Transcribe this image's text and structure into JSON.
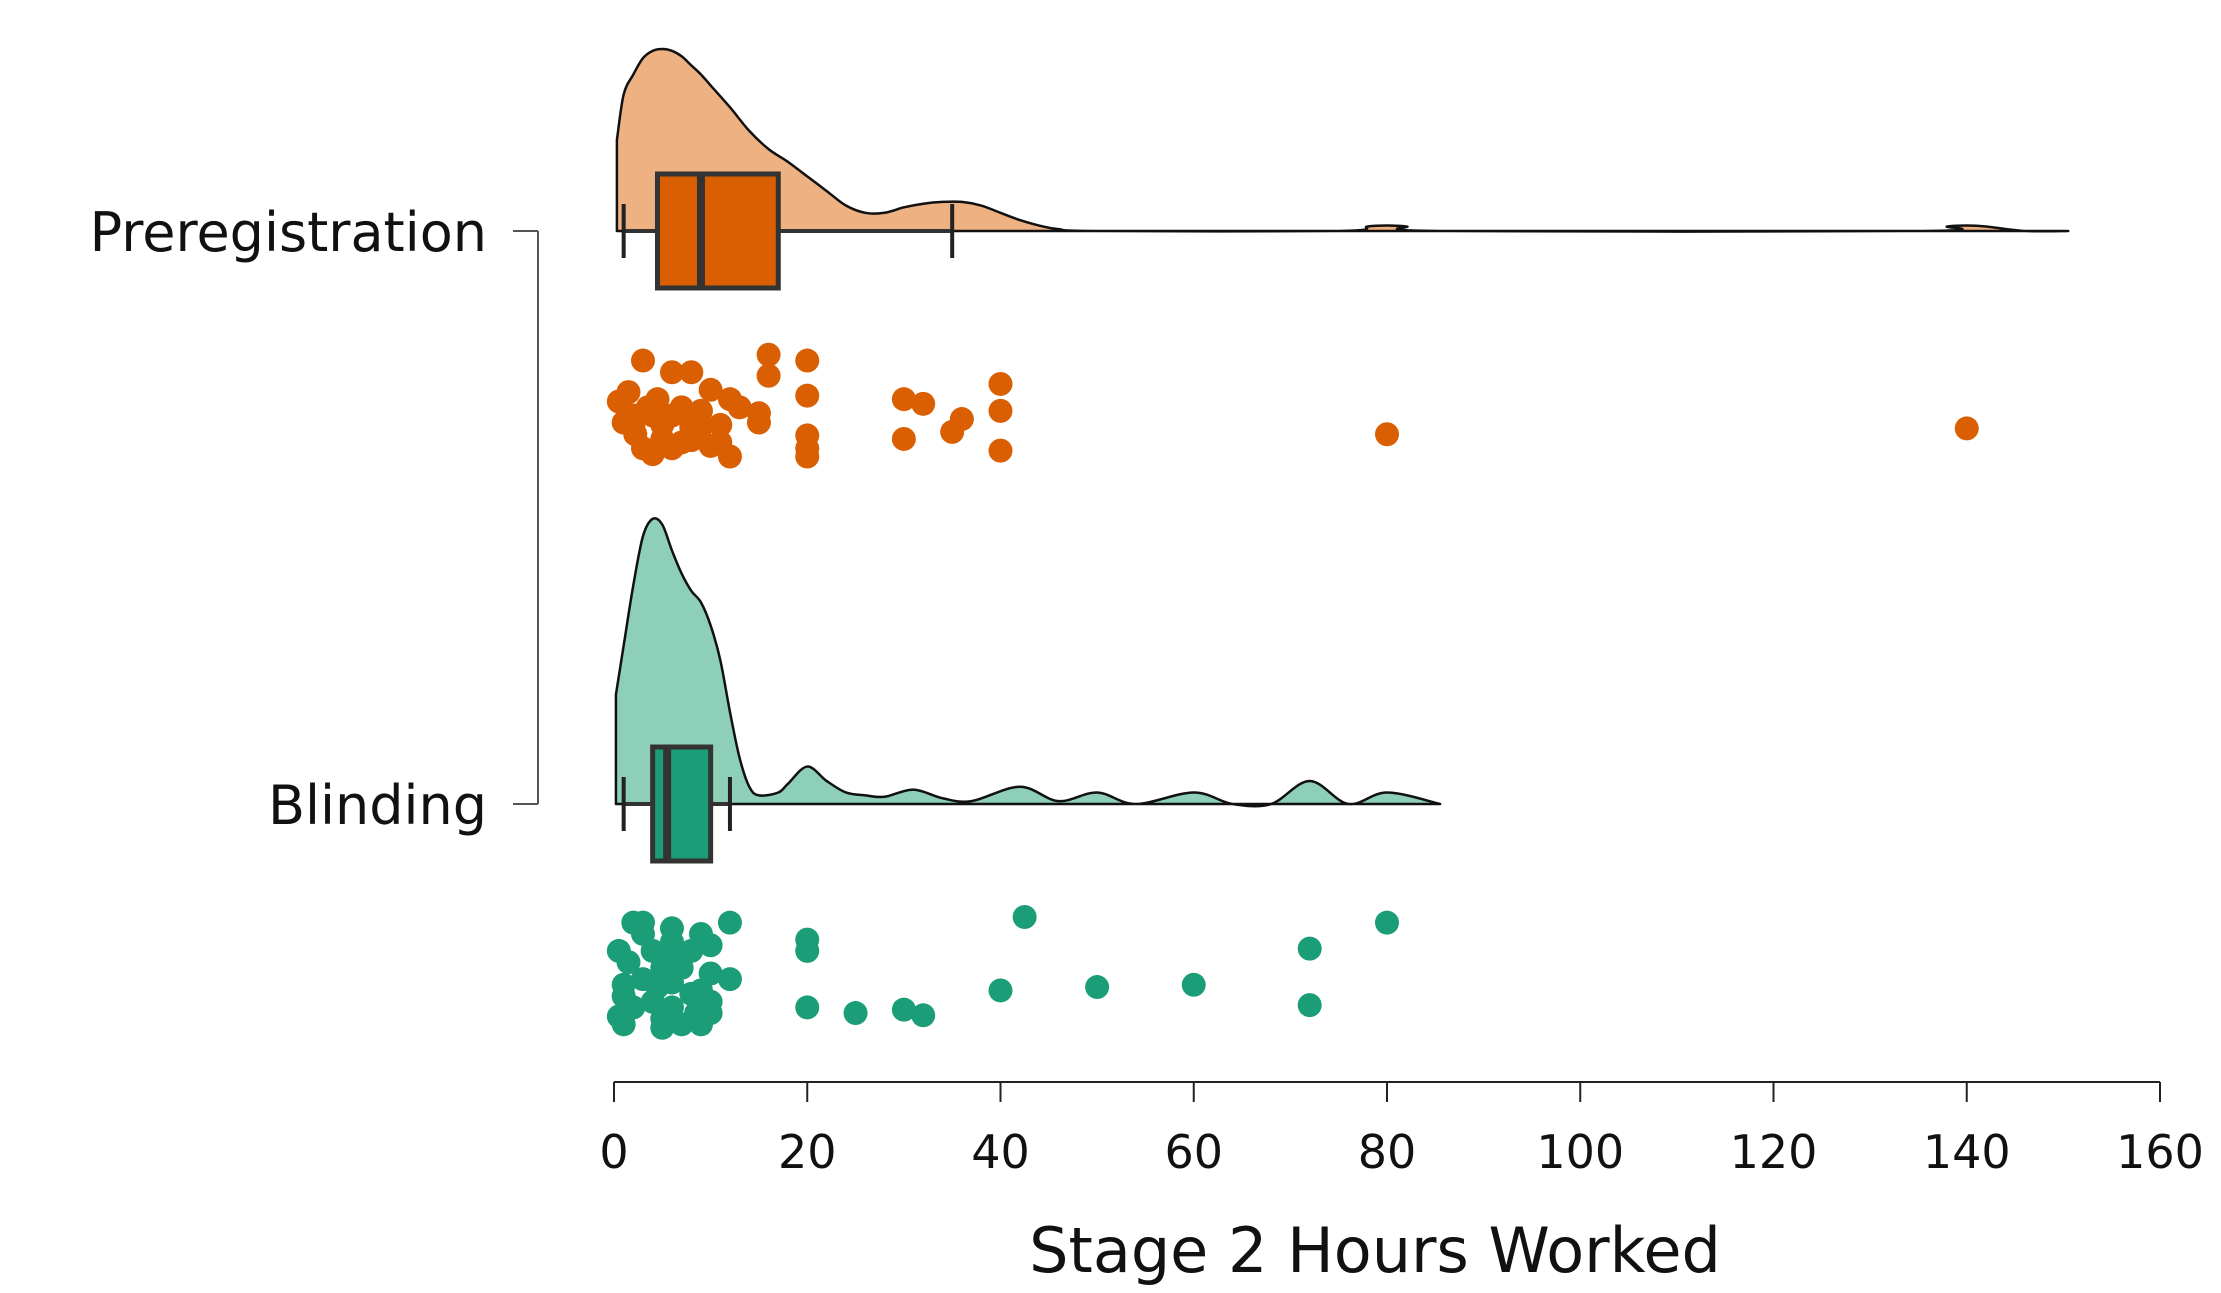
{
  "chart_data": {
    "type": "raincloud",
    "xlabel": "Stage 2 Hours Worked",
    "xlim": [
      0,
      160
    ],
    "xticks": [
      0,
      20,
      40,
      60,
      80,
      100,
      120,
      140,
      160
    ],
    "xtick_labels": [
      "0",
      "20",
      "40",
      "60",
      "80",
      "100",
      "120",
      "140",
      "160"
    ],
    "grid": false,
    "legend": "none",
    "groups": [
      {
        "label": "Preregistration",
        "color": "#d95f02",
        "density_fill": "#eeb182",
        "box": {
          "whisker_low": 1,
          "q1": 4.5,
          "median": 9,
          "q3": 17,
          "whisker_high": 35
        },
        "density": [
          [
            0.3,
            0.5
          ],
          [
            1,
            0.75
          ],
          [
            2,
            0.86
          ],
          [
            3,
            0.95
          ],
          [
            4,
            0.99
          ],
          [
            5,
            1.0
          ],
          [
            6,
            0.99
          ],
          [
            7,
            0.96
          ],
          [
            8,
            0.91
          ],
          [
            9,
            0.86
          ],
          [
            10,
            0.8
          ],
          [
            12,
            0.68
          ],
          [
            14,
            0.55
          ],
          [
            16,
            0.45
          ],
          [
            18,
            0.38
          ],
          [
            20,
            0.3
          ],
          [
            22,
            0.22
          ],
          [
            24,
            0.14
          ],
          [
            26,
            0.1
          ],
          [
            28,
            0.1
          ],
          [
            30,
            0.13
          ],
          [
            32,
            0.15
          ],
          [
            34,
            0.16
          ],
          [
            36,
            0.16
          ],
          [
            38,
            0.14
          ],
          [
            40,
            0.1
          ],
          [
            42,
            0.06
          ],
          [
            44,
            0.03
          ],
          [
            46,
            0.01
          ],
          [
            50,
            0.0
          ],
          [
            75,
            0.0
          ],
          [
            78,
            0.025
          ],
          [
            80,
            0.03
          ],
          [
            82,
            0.025
          ],
          [
            86,
            0.0
          ],
          [
            135,
            0.0
          ],
          [
            138,
            0.025
          ],
          [
            140,
            0.03
          ],
          [
            142,
            0.025
          ],
          [
            146,
            0.0
          ],
          [
            150.5,
            0.0
          ]
        ],
        "points": [
          [
            0.5,
            0.5
          ],
          [
            3,
            0.15
          ],
          [
            1.5,
            0.42
          ],
          [
            2,
            0.62
          ],
          [
            3.5,
            0.55
          ],
          [
            2.2,
            0.78
          ],
          [
            4.5,
            0.48
          ],
          [
            6,
            0.25
          ],
          [
            8,
            0.25
          ],
          [
            10,
            0.4
          ],
          [
            12,
            0.48
          ],
          [
            9,
            0.72
          ],
          [
            11,
            0.7
          ],
          [
            13,
            0.55
          ],
          [
            15,
            0.6
          ],
          [
            16,
            0.1
          ],
          [
            16,
            0.28
          ],
          [
            20,
            0.15
          ],
          [
            20,
            0.45
          ],
          [
            5,
            0.82
          ],
          [
            7,
            0.85
          ],
          [
            6,
            0.9
          ],
          [
            8,
            0.83
          ],
          [
            10,
            0.88
          ],
          [
            12,
            0.97
          ],
          [
            3,
            0.9
          ],
          [
            4,
            0.95
          ],
          [
            5,
            0.7
          ],
          [
            7,
            0.55
          ],
          [
            9,
            0.58
          ],
          [
            15,
            0.68
          ],
          [
            11,
            0.85
          ],
          [
            20,
            0.9
          ],
          [
            20,
            0.97
          ],
          [
            20,
            0.79
          ],
          [
            30,
            0.48
          ],
          [
            32,
            0.52
          ],
          [
            30,
            0.82
          ],
          [
            35,
            0.76
          ],
          [
            36,
            0.65
          ],
          [
            40,
            0.35
          ],
          [
            40,
            0.58
          ],
          [
            40,
            0.92
          ],
          [
            80,
            0.78
          ],
          [
            140,
            0.73
          ],
          [
            1,
            0.68
          ],
          [
            2,
            0.72
          ],
          [
            4,
            0.62
          ],
          [
            6,
            0.62
          ],
          [
            8,
            0.72
          ]
        ]
      },
      {
        "label": "Blinding",
        "color": "#1b9e77",
        "density_fill": "#8dcfb9",
        "box": {
          "whisker_low": 1,
          "q1": 4,
          "median": 5.5,
          "q3": 10,
          "whisker_high": 12
        },
        "density": [
          [
            0.2,
            0.38
          ],
          [
            1,
            0.55
          ],
          [
            2,
            0.76
          ],
          [
            3,
            0.93
          ],
          [
            4,
            0.99
          ],
          [
            5,
            0.97
          ],
          [
            6,
            0.88
          ],
          [
            7,
            0.8
          ],
          [
            8,
            0.74
          ],
          [
            9,
            0.7
          ],
          [
            10,
            0.62
          ],
          [
            11,
            0.5
          ],
          [
            12,
            0.32
          ],
          [
            13,
            0.16
          ],
          [
            14,
            0.06
          ],
          [
            15,
            0.03
          ],
          [
            17,
            0.04
          ],
          [
            18,
            0.07
          ],
          [
            20,
            0.13
          ],
          [
            22,
            0.08
          ],
          [
            24,
            0.04
          ],
          [
            26,
            0.03
          ],
          [
            28,
            0.025
          ],
          [
            31,
            0.05
          ],
          [
            34,
            0.02
          ],
          [
            37,
            0.01
          ],
          [
            42,
            0.06
          ],
          [
            46,
            0.01
          ],
          [
            50,
            0.04
          ],
          [
            54,
            0.0
          ],
          [
            60,
            0.04
          ],
          [
            64,
            0.0
          ],
          [
            68,
            0.0
          ],
          [
            72,
            0.08
          ],
          [
            76,
            0.0
          ],
          [
            80,
            0.04
          ],
          [
            85.5,
            0.0
          ]
        ],
        "points": [
          [
            0.5,
            0.3
          ],
          [
            1.5,
            0.4
          ],
          [
            1,
            0.7
          ],
          [
            2,
            0.05
          ],
          [
            3,
            0.05
          ],
          [
            4,
            0.3
          ],
          [
            5,
            0.35
          ],
          [
            6,
            0.1
          ],
          [
            7,
            0.45
          ],
          [
            8,
            0.3
          ],
          [
            9,
            0.15
          ],
          [
            10,
            0.25
          ],
          [
            10,
            0.5
          ],
          [
            12,
            0.55
          ],
          [
            9,
            0.65
          ],
          [
            10,
            0.75
          ],
          [
            5,
            0.9
          ],
          [
            6,
            0.8
          ],
          [
            7,
            0.95
          ],
          [
            8,
            0.68
          ],
          [
            3,
            0.55
          ],
          [
            4,
            0.75
          ],
          [
            2,
            0.8
          ],
          [
            1,
            0.95
          ],
          [
            0.5,
            0.88
          ],
          [
            6,
            0.58
          ],
          [
            5,
            0.45
          ],
          [
            4.5,
            0.62
          ],
          [
            10,
            0.85
          ],
          [
            9,
            0.95
          ],
          [
            12,
            0.05
          ],
          [
            20,
            0.2
          ],
          [
            20,
            0.3
          ],
          [
            25,
            0.85
          ],
          [
            30,
            0.82
          ],
          [
            32,
            0.87
          ],
          [
            20,
            0.8
          ],
          [
            42.5,
            0.0
          ],
          [
            40,
            0.65
          ],
          [
            50,
            0.62
          ],
          [
            60,
            0.6
          ],
          [
            72,
            0.28
          ],
          [
            72,
            0.78
          ],
          [
            80,
            0.05
          ],
          [
            3,
            0.15
          ],
          [
            5,
            0.98
          ],
          [
            1,
            0.6
          ],
          [
            7,
            0.35
          ],
          [
            8.5,
            0.85
          ],
          [
            6,
            0.22
          ]
        ]
      }
    ]
  }
}
